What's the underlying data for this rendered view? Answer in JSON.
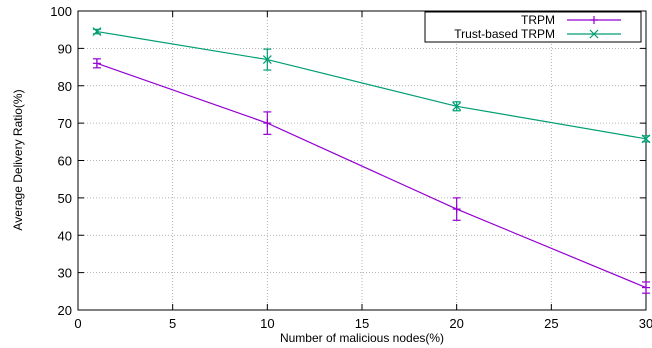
{
  "colors": {
    "series_0": "#9400d3",
    "series_1": "#009e73",
    "grid": "#a0a0a0",
    "axis": "#000000"
  },
  "chart_data": {
    "type": "line",
    "title": "",
    "xlabel": "Number of malicious nodes(%)",
    "ylabel": "Average Delivery Ratio(%)",
    "xlim": [
      0,
      30
    ],
    "ylim": [
      20,
      100
    ],
    "xticks": [
      0,
      5,
      10,
      15,
      20,
      25,
      30
    ],
    "yticks": [
      20,
      30,
      40,
      50,
      60,
      70,
      80,
      90,
      100
    ],
    "xtick_labels": [
      "0",
      "5",
      "10",
      "15",
      "20",
      "25",
      "30"
    ],
    "ytick_labels": [
      "20",
      "30",
      "40",
      "50",
      "60",
      "70",
      "80",
      "90",
      "100"
    ],
    "grid": true,
    "legend_position": "top-right",
    "x": [
      1,
      10,
      20,
      30
    ],
    "series": [
      {
        "name": "TRPM",
        "marker": "plus",
        "color": "#9400d3",
        "values": [
          86,
          70,
          47,
          26
        ],
        "error": [
          1.2,
          3.0,
          3.0,
          1.5
        ]
      },
      {
        "name": "Trust-based TRPM",
        "marker": "x",
        "color": "#009e73",
        "values": [
          94.5,
          87,
          74.5,
          65.8
        ],
        "error": [
          0.6,
          2.8,
          1.2,
          0.8
        ]
      }
    ]
  }
}
